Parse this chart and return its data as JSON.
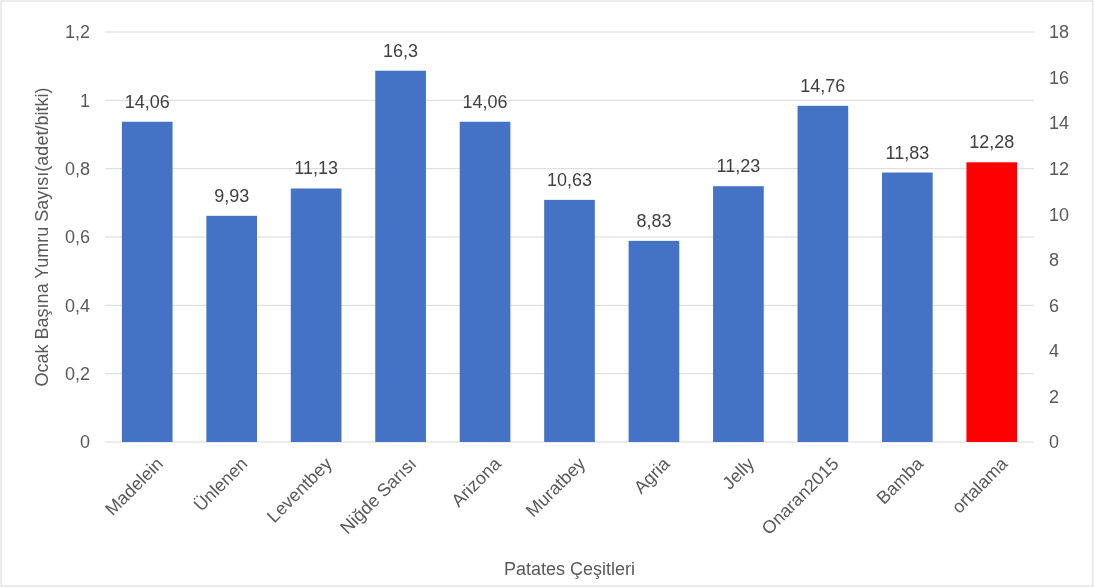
{
  "chart_data": {
    "type": "bar",
    "xlabel": "Patates Çeşitleri",
    "ylabel": "Ocak Başına Yumru Sayısı(adet/bitki)",
    "categories": [
      "Madelein",
      "Ünlenen",
      "Leventbey",
      "Niğde Sarısı",
      "Arizona",
      "Muratbey",
      "Agria",
      "Jelly",
      "Onaran2015",
      "Bamba",
      "ortalama"
    ],
    "series": [
      {
        "axis": "y2",
        "colors": [
          "#4472c4",
          "#4472c4",
          "#4472c4",
          "#4472c4",
          "#4472c4",
          "#4472c4",
          "#4472c4",
          "#4472c4",
          "#4472c4",
          "#4472c4",
          "#ff0000"
        ],
        "values": [
          14.06,
          9.93,
          11.13,
          16.3,
          14.06,
          10.63,
          8.83,
          11.23,
          14.76,
          11.83,
          12.28
        ],
        "value_labels": [
          "14,06",
          "9,93",
          "11,13",
          "16,3",
          "14,06",
          "10,63",
          "8,83",
          "11,23",
          "14,76",
          "11,83",
          "12,28"
        ]
      }
    ],
    "ylim": [
      0,
      1.2
    ],
    "yticks": [
      0,
      {
        "value": 0.2,
        "label": "0,2"
      },
      {
        "value": 0.4,
        "label": "0,4"
      },
      {
        "value": 0.6,
        "label": "0,6"
      },
      {
        "value": 0.8,
        "label": "0,8"
      },
      1,
      {
        "value": 1.2,
        "label": "1,2"
      }
    ],
    "y2lim": [
      0,
      18
    ],
    "y2ticks": [
      0,
      2,
      4,
      6,
      8,
      10,
      12,
      14,
      16,
      18
    ],
    "grid": "y"
  }
}
